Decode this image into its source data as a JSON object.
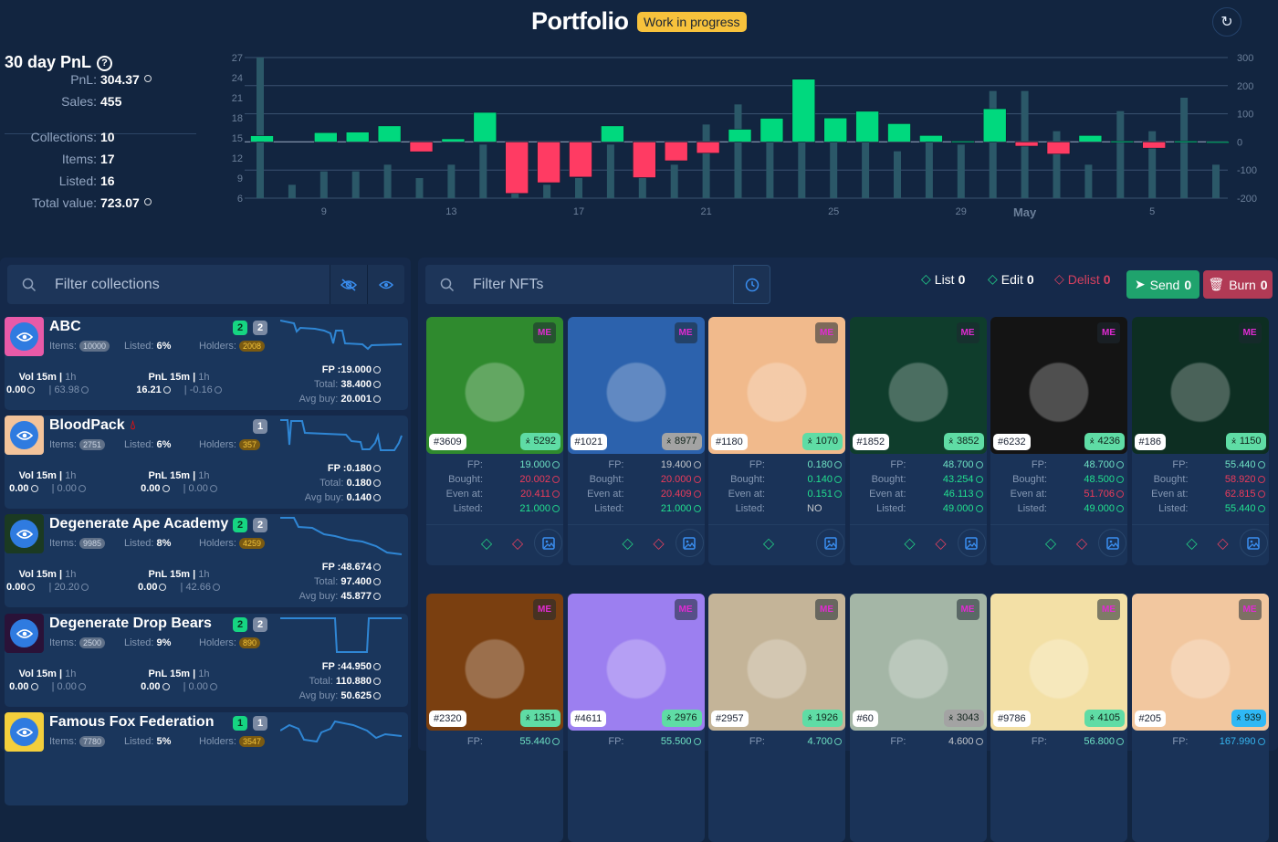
{
  "header": {
    "title": "Portfolio",
    "badge": "Work in progress",
    "refresh_icon": "refresh-icon"
  },
  "summary": {
    "heading": "30 day PnL",
    "stats": [
      {
        "label": "PnL:",
        "value": "304.37",
        "sol": true
      },
      {
        "label": "Sales:",
        "value": "455",
        "sol": false
      },
      {
        "label": "Collections:",
        "value": "10",
        "sol": false
      },
      {
        "label": "Items:",
        "value": "17",
        "sol": false
      },
      {
        "label": "Listed:",
        "value": "16",
        "sol": false
      },
      {
        "label": "Total value:",
        "value": "723.07",
        "sol": true
      }
    ]
  },
  "chart_data": {
    "type": "bar",
    "x": [
      "Apr 7",
      "Apr 8",
      "Apr 9",
      "Apr 10",
      "Apr 11",
      "Apr 12",
      "Apr 13",
      "Apr 14",
      "Apr 15",
      "Apr 16",
      "Apr 17",
      "Apr 18",
      "Apr 19",
      "Apr 20",
      "Apr 21",
      "Apr 22",
      "Apr 23",
      "Apr 24",
      "Apr 25",
      "Apr 26",
      "Apr 27",
      "Apr 28",
      "Apr 29",
      "Apr 30",
      "May 1",
      "May 2",
      "May 3",
      "May 4",
      "May 5",
      "May 6",
      "May 7"
    ],
    "x_tick_labels": [
      "9",
      "13",
      "17",
      "21",
      "25",
      "29",
      "May",
      "5"
    ],
    "series": [
      {
        "axis": "left",
        "color": "#2b5868",
        "values": [
          27,
          8,
          10,
          10,
          11,
          9,
          11,
          14,
          7,
          8,
          9,
          14,
          9,
          11,
          17,
          20,
          15,
          15,
          15,
          15,
          13,
          15,
          14,
          22,
          22,
          16,
          11,
          19,
          16,
          21,
          11
        ]
      },
      {
        "axis": "right",
        "positive_color": "#00d97e",
        "negative_color": "#ff3b63",
        "values": [
          22,
          0,
          33,
          35,
          57,
          -35,
          11,
          105,
          -183,
          -145,
          -125,
          57,
          -127,
          -67,
          -40,
          45,
          84,
          223,
          85,
          109,
          65,
          23,
          3,
          118,
          -15,
          -43,
          23,
          3,
          -22,
          3,
          1
        ]
      }
    ],
    "left_axis": {
      "ylim": [
        6,
        27
      ],
      "ticks": [
        "27",
        "24",
        "21",
        "18",
        "15",
        "12",
        "9",
        "6"
      ]
    },
    "right_axis": {
      "ylim": [
        -200,
        300
      ],
      "ticks": [
        "300",
        "200",
        "100",
        "0",
        "-100",
        "-200"
      ]
    },
    "grid": true
  },
  "collections_panel": {
    "filter_placeholder": "Filter collections",
    "items": [
      {
        "name": "ABC",
        "thumb": "#e85aa8",
        "flag": "",
        "badge_green": "2",
        "badge_grey": "2",
        "items": "10000",
        "listed": "6%",
        "holders": "2008",
        "vol_label": "Vol 15m",
        "pnl_label": "PnL 15m",
        "period": "1h",
        "vol_15m": "0.00",
        "vol_trend": "down",
        "vol_1h": "63.98",
        "pnl_15m": "16.21",
        "pnl_trend": "up",
        "pnl_1h": "-0.16",
        "fp": "FP :19.000",
        "total": "38.400",
        "avg_buy": "20.001"
      },
      {
        "name": "BloodPack",
        "thumb": "#f3c39a",
        "flag": "blood-drop",
        "badge_green": "",
        "badge_grey": "1",
        "items": "2751",
        "listed": "6%",
        "holders": "357",
        "vol_label": "Vol 15m",
        "pnl_label": "PnL 15m",
        "period": "1h",
        "vol_15m": "0.00",
        "vol_trend": "",
        "vol_1h": "0.00",
        "pnl_15m": "0.00",
        "pnl_trend": "",
        "pnl_1h": "0.00",
        "fp": "FP :0.180",
        "total": "0.180",
        "avg_buy": "0.140"
      },
      {
        "name": "Degenerate Ape Academy",
        "thumb": "#1b3a22",
        "flag": "",
        "badge_green": "2",
        "badge_grey": "2",
        "items": "9985",
        "listed": "8%",
        "holders": "4259",
        "vol_label": "Vol 15m",
        "pnl_label": "PnL 15m",
        "period": "1h",
        "vol_15m": "0.00",
        "vol_trend": "down",
        "vol_1h": "20.20",
        "pnl_15m": "0.00",
        "pnl_trend": "down",
        "pnl_1h": "42.66",
        "fp": "FP :48.674",
        "total": "97.400",
        "avg_buy": "45.877"
      },
      {
        "name": "Degenerate Drop Bears",
        "thumb": "#2a1238",
        "flag": "",
        "badge_green": "2",
        "badge_grey": "2",
        "items": "2500",
        "listed": "9%",
        "holders": "890",
        "vol_label": "Vol 15m",
        "pnl_label": "PnL 15m",
        "period": "1h",
        "vol_15m": "0.00",
        "vol_trend": "",
        "vol_1h": "0.00",
        "pnl_15m": "0.00",
        "pnl_trend": "",
        "pnl_1h": "0.00",
        "fp": "FP :44.950",
        "total": "110.880",
        "avg_buy": "50.625"
      },
      {
        "name": "Famous Fox Federation",
        "thumb": "#f4cf3c",
        "flag": "",
        "badge_green": "1",
        "badge_grey": "1",
        "items": "7780",
        "listed": "5%",
        "holders": "3547",
        "vol_label": "",
        "pnl_label": "",
        "period": "",
        "vol_15m": "",
        "vol_trend": "",
        "vol_1h": "",
        "pnl_15m": "",
        "pnl_trend": "",
        "pnl_1h": "",
        "fp": "",
        "total": "",
        "avg_buy": ""
      }
    ],
    "labels": {
      "items": "Items:",
      "listed": "Listed:",
      "holders": "Holders:",
      "total": "Total:",
      "avg_buy": "Avg buy:"
    }
  },
  "nfts_panel": {
    "filter_placeholder": "Filter NFTs",
    "actions": {
      "list": "List",
      "list_count": "0",
      "edit": "Edit",
      "edit_count": "0",
      "delist": "Delist",
      "delist_count": "0",
      "send": "Send",
      "send_count": "0",
      "burn": "Burn",
      "burn_count": "0"
    },
    "marketplace_badge": "ME",
    "labels": {
      "fp": "FP:",
      "bought": "Bought:",
      "even": "Even at:",
      "listed": "Listed:"
    },
    "colors": {
      "green": "#22e08f",
      "red": "#ee3b5b",
      "cyan": "#6fe3c4",
      "grey": "#c3c7cc",
      "blue": "#35b6f0",
      "rank_green": "#5fdca5",
      "rank_grey": "#a3a3a3",
      "rank_blue": "#2fb8f5"
    },
    "items": [
      {
        "id": "#3609",
        "rank": "5292",
        "rank_color": "rank_green",
        "img": "#2f8a2e",
        "fp": "19.000",
        "fp_c": "cyan",
        "bought": "20.002",
        "bought_c": "red",
        "even": "20.411",
        "even_c": "red",
        "listed": "21.000",
        "listed_c": "green",
        "delist": true
      },
      {
        "id": "#1021",
        "rank": "8977",
        "rank_color": "rank_grey",
        "img": "#2c62ad",
        "fp": "19.400",
        "fp_c": "grey",
        "bought": "20.000",
        "bought_c": "red",
        "even": "20.409",
        "even_c": "red",
        "listed": "21.000",
        "listed_c": "green",
        "delist": true
      },
      {
        "id": "#1180",
        "rank": "1070",
        "rank_color": "rank_green",
        "img": "#f1ba8c",
        "fp": "0.180",
        "fp_c": "cyan",
        "bought": "0.140",
        "bought_c": "green",
        "even": "0.151",
        "even_c": "green",
        "listed": "NO",
        "listed_c": "grey",
        "delist": false
      },
      {
        "id": "#1852",
        "rank": "3852",
        "rank_color": "rank_green",
        "img": "#0f3d2c",
        "fp": "48.700",
        "fp_c": "cyan",
        "bought": "43.254",
        "bought_c": "green",
        "even": "46.113",
        "even_c": "green",
        "listed": "49.000",
        "listed_c": "green",
        "delist": true
      },
      {
        "id": "#6232",
        "rank": "4236",
        "rank_color": "rank_green",
        "img": "#141414",
        "fp": "48.700",
        "fp_c": "cyan",
        "bought": "48.500",
        "bought_c": "green",
        "even": "51.706",
        "even_c": "red",
        "listed": "49.000",
        "listed_c": "green",
        "delist": true
      },
      {
        "id": "#186",
        "rank": "1150",
        "rank_color": "rank_green",
        "img": "#0d2e22",
        "fp": "55.440",
        "fp_c": "cyan",
        "bought": "58.920",
        "bought_c": "red",
        "even": "62.815",
        "even_c": "red",
        "listed": "55.440",
        "listed_c": "green",
        "delist": true
      },
      {
        "id": "#2320",
        "rank": "1351",
        "rank_color": "rank_green",
        "img": "#7a3f10",
        "fp": "55.440",
        "fp_c": "cyan"
      },
      {
        "id": "#4611",
        "rank": "2976",
        "rank_color": "rank_green",
        "img": "#9c7ff0",
        "fp": "55.500",
        "fp_c": "cyan"
      },
      {
        "id": "#2957",
        "rank": "1926",
        "rank_color": "rank_green",
        "img": "#c4b498",
        "fp": "4.700",
        "fp_c": "cyan"
      },
      {
        "id": "#60",
        "rank": "3043",
        "rank_color": "rank_grey",
        "img": "#a4b6a6",
        "fp": "4.600",
        "fp_c": "grey"
      },
      {
        "id": "#9786",
        "rank": "4105",
        "rank_color": "rank_green",
        "img": "#f3e0a6",
        "fp": "56.800",
        "fp_c": "cyan"
      },
      {
        "id": "#205",
        "rank": "939",
        "rank_color": "rank_blue",
        "img": "#f2c79f",
        "fp": "167.990",
        "fp_c": "blue"
      }
    ]
  }
}
